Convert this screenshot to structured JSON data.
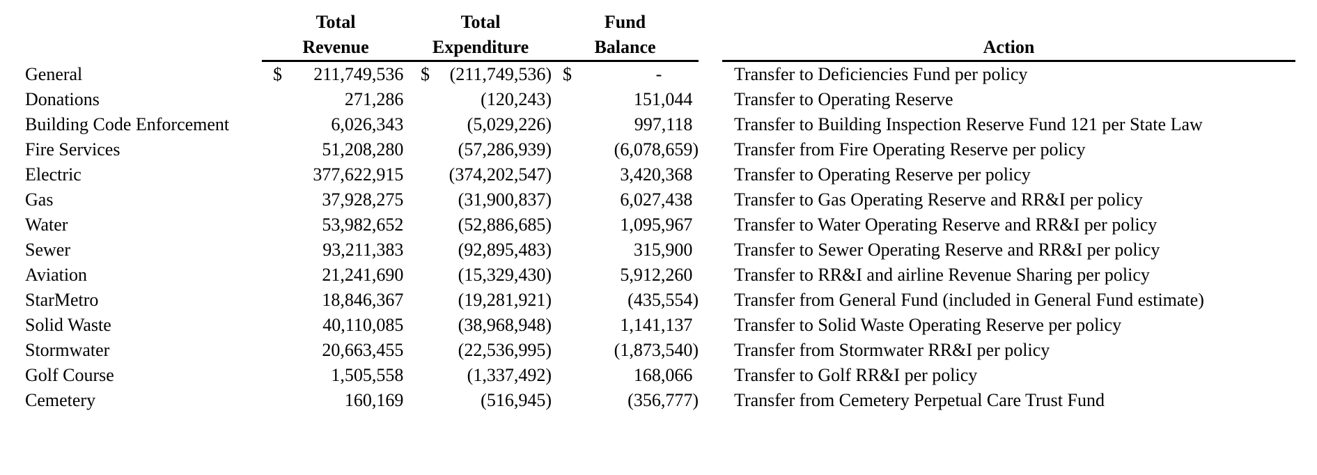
{
  "colors": {
    "text": "#000000",
    "background": "#ffffff",
    "rule": "#000000"
  },
  "table": {
    "headers": {
      "revenue_line1": "Total",
      "revenue_line2": "Revenue",
      "expenditure_line1": "Total",
      "expenditure_line2": "Expenditure",
      "balance_line1": "Fund",
      "balance_line2": "Balance",
      "action": "Action"
    },
    "rows": [
      {
        "fund": "General",
        "revenue_currency": "$",
        "revenue": "211,749,536",
        "expenditure_currency": "$",
        "expenditure": "(211,749,536)",
        "balance_currency": "$",
        "balance": "-",
        "action": "Transfer to Deficiencies Fund per policy"
      },
      {
        "fund": "Donations",
        "revenue_currency": "",
        "revenue": "271,286",
        "expenditure_currency": "",
        "expenditure": "(120,243)",
        "balance_currency": "",
        "balance": "151,044",
        "action": "Transfer to Operating Reserve"
      },
      {
        "fund": "Building Code Enforcement",
        "revenue_currency": "",
        "revenue": "6,026,343",
        "expenditure_currency": "",
        "expenditure": "(5,029,226)",
        "balance_currency": "",
        "balance": "997,118",
        "action": "Transfer to Building Inspection Reserve Fund 121 per State Law"
      },
      {
        "fund": "Fire Services",
        "revenue_currency": "",
        "revenue": "51,208,280",
        "expenditure_currency": "",
        "expenditure": "(57,286,939)",
        "balance_currency": "",
        "balance": "(6,078,659)",
        "action": "Transfer from Fire Operating Reserve per policy"
      },
      {
        "fund": "Electric",
        "revenue_currency": "",
        "revenue": "377,622,915",
        "expenditure_currency": "",
        "expenditure": "(374,202,547)",
        "balance_currency": "",
        "balance": "3,420,368",
        "action": "Transfer to Operating Reserve per policy"
      },
      {
        "fund": "Gas",
        "revenue_currency": "",
        "revenue": "37,928,275",
        "expenditure_currency": "",
        "expenditure": "(31,900,837)",
        "balance_currency": "",
        "balance": "6,027,438",
        "action": "Transfer to Gas Operating Reserve and RR&I per policy"
      },
      {
        "fund": "Water",
        "revenue_currency": "",
        "revenue": "53,982,652",
        "expenditure_currency": "",
        "expenditure": "(52,886,685)",
        "balance_currency": "",
        "balance": "1,095,967",
        "action": "Transfer to Water Operating Reserve and RR&I per policy"
      },
      {
        "fund": "Sewer",
        "revenue_currency": "",
        "revenue": "93,211,383",
        "expenditure_currency": "",
        "expenditure": "(92,895,483)",
        "balance_currency": "",
        "balance": "315,900",
        "action": "Transfer to Sewer Operating Reserve and RR&I per policy"
      },
      {
        "fund": "Aviation",
        "revenue_currency": "",
        "revenue": "21,241,690",
        "expenditure_currency": "",
        "expenditure": "(15,329,430)",
        "balance_currency": "",
        "balance": "5,912,260",
        "action": "Transfer to RR&I and airline Revenue Sharing per policy"
      },
      {
        "fund": "StarMetro",
        "revenue_currency": "",
        "revenue": "18,846,367",
        "expenditure_currency": "",
        "expenditure": "(19,281,921)",
        "balance_currency": "",
        "balance": "(435,554)",
        "action": "Transfer from General Fund (included in General Fund estimate)"
      },
      {
        "fund": "Solid Waste",
        "revenue_currency": "",
        "revenue": "40,110,085",
        "expenditure_currency": "",
        "expenditure": "(38,968,948)",
        "balance_currency": "",
        "balance": "1,141,137",
        "action": "Transfer to Solid Waste Operating Reserve per policy"
      },
      {
        "fund": "Stormwater",
        "revenue_currency": "",
        "revenue": "20,663,455",
        "expenditure_currency": "",
        "expenditure": "(22,536,995)",
        "balance_currency": "",
        "balance": "(1,873,540)",
        "action": "Transfer from Stormwater RR&I per policy"
      },
      {
        "fund": "Golf Course",
        "revenue_currency": "",
        "revenue": "1,505,558",
        "expenditure_currency": "",
        "expenditure": "(1,337,492)",
        "balance_currency": "",
        "balance": "168,066",
        "action": "Transfer to Golf RR&I per policy"
      },
      {
        "fund": "Cemetery",
        "revenue_currency": "",
        "revenue": "160,169",
        "expenditure_currency": "",
        "expenditure": "(516,945)",
        "balance_currency": "",
        "balance": "(356,777)",
        "action": "Transfer from Cemetery Perpetual Care Trust Fund"
      }
    ]
  }
}
